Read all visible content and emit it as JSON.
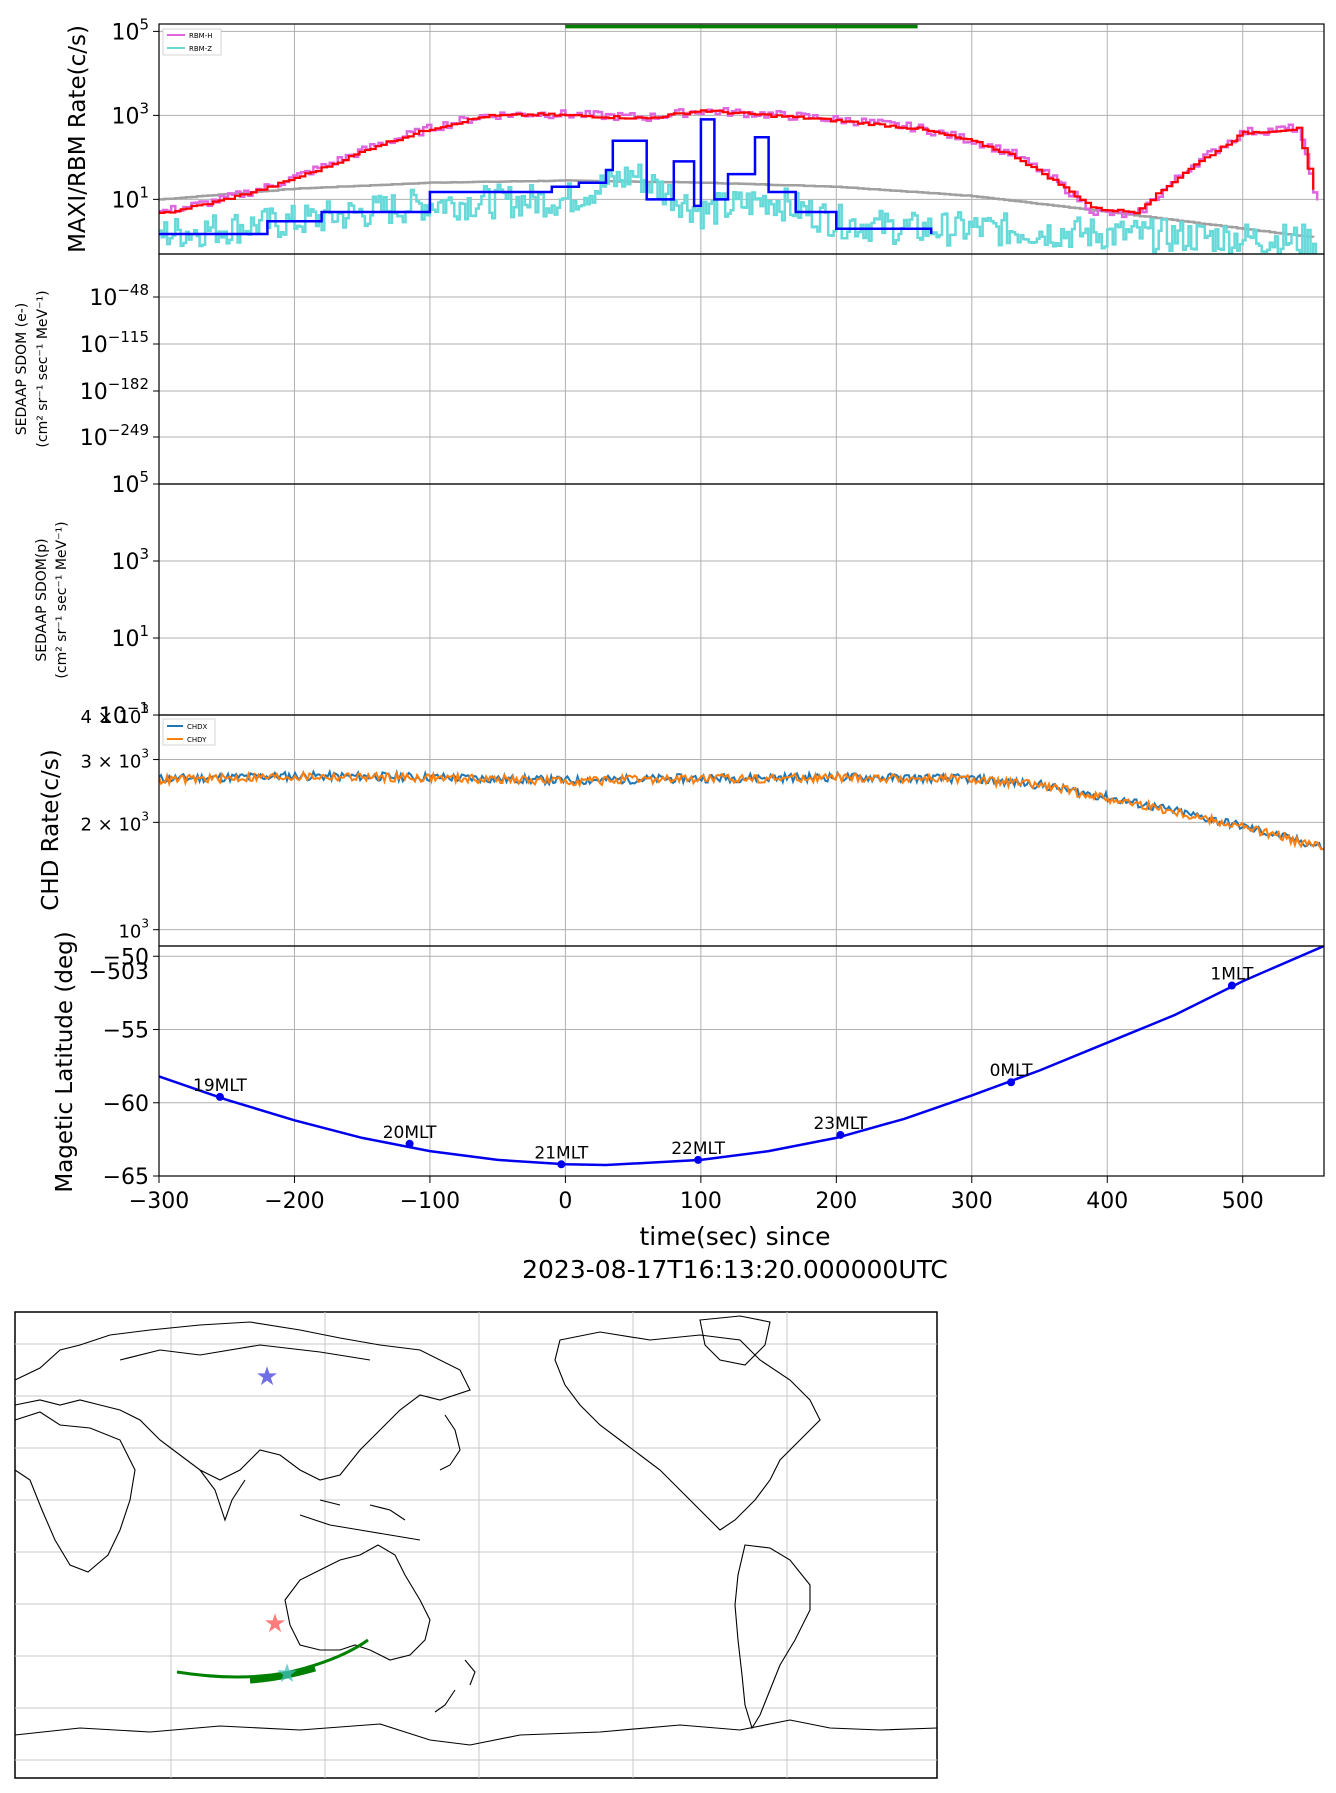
{
  "xaxis": {
    "label_line1": "time(sec) since",
    "label_line2": "2023-08-17T16:13:20.000000UTC",
    "range": [
      -300,
      560
    ],
    "ticks": [
      -300,
      -200,
      -100,
      0,
      100,
      200,
      300,
      400,
      500
    ],
    "tick_labels": [
      "−300",
      "−200",
      "−100",
      "0",
      "100",
      "200",
      "300",
      "400",
      "500"
    ]
  },
  "colors": {
    "rbm_h": "#e066e0",
    "rbm_z": "#66d9d9",
    "maxi_red": "#ff0000",
    "maxi_blue": "#0000ff",
    "background_curve": "#a0a0a0",
    "green_bar": "#008000",
    "chdx": "#1f77b4",
    "chdy": "#ff7f0e",
    "mlat": "#0000ee",
    "grid": "#b0b0b0"
  },
  "panel1": {
    "ylabel": "MAXI/RBM Rate(c/s)",
    "tick_labels": [
      "10",
      "10",
      "10"
    ],
    "tick_exps": [
      "5",
      "3",
      "1"
    ],
    "legend": [
      "RBM-H",
      "RBM-Z"
    ]
  },
  "panel2": {
    "ylabel_line1": "SEDAAP SDOM (e-)",
    "ylabel_line2": "(cm² sr⁻¹ sec⁻¹ MeV⁻¹)",
    "tick_labels": [
      "10",
      "10",
      "10",
      "10"
    ],
    "tick_exps": [
      "−48",
      "−115",
      "−182",
      "−249"
    ]
  },
  "panel3": {
    "ylabel_line1": "SEDAAP SDOM(p)",
    "ylabel_line2": "(cm² sr⁻¹ sec⁻¹ MeV⁻¹)",
    "tick_labels": [
      "10",
      "10",
      "10",
      "10"
    ],
    "tick_exps": [
      "5",
      "3",
      "1",
      "−1"
    ]
  },
  "panel4": {
    "ylabel": "CHD Rate(c/s)",
    "tick_labels": [
      "4 × 10",
      "3 × 10",
      "2 × 10",
      "10"
    ],
    "tick_exps": [
      "3",
      "3",
      "3",
      "3"
    ],
    "legend": [
      "CHDX",
      "CHDY"
    ]
  },
  "panel5": {
    "ylabel": "Magetic Latitude  (deg)",
    "tick_labels": [
      "−50",
      "−55",
      "−60",
      "−65"
    ],
    "overlap_label": "−503"
  },
  "chart_data": [
    {
      "type": "line",
      "title": "",
      "ylabel": "MAXI/RBM Rate(c/s)",
      "yscale": "log",
      "ylim": [
        0.5,
        150000
      ],
      "xlim": [
        -300,
        560
      ],
      "grid": true,
      "legend_placement": "top-left",
      "annotations": [
        {
          "type": "horizontal-bar",
          "x_range": [
            0,
            260
          ],
          "y": 130000,
          "color": "#008000"
        }
      ],
      "series": [
        {
          "name": "RBM-H",
          "x": [
            -300,
            -260,
            -220,
            -180,
            -140,
            -100,
            -60,
            -20,
            20,
            60,
            100,
            140,
            180,
            220,
            260,
            300,
            330,
            360,
            390,
            420,
            460,
            500,
            540,
            555
          ],
          "y": [
            5,
            9,
            20,
            60,
            200,
            500,
            1000,
            1100,
            1000,
            900,
            1300,
            1100,
            900,
            700,
            500,
            250,
            120,
            30,
            5,
            4,
            60,
            400,
            500,
            8
          ]
        },
        {
          "name": "RBM-Z",
          "x": [
            -300,
            -200,
            -100,
            0,
            50,
            100,
            150,
            200,
            250,
            300,
            400,
            500,
            555
          ],
          "y": [
            1.5,
            3,
            8,
            10,
            40,
            5,
            10,
            3,
            2,
            2,
            1.5,
            1.2,
            1
          ]
        },
        {
          "name": "",
          "x": [
            -300,
            -260,
            -220,
            -180,
            -140,
            -100,
            -60,
            -20,
            20,
            60,
            100,
            140,
            180,
            220,
            260,
            300,
            330,
            360,
            390,
            420,
            460,
            500,
            540,
            555
          ],
          "y": [
            4.5,
            8.5,
            19,
            55,
            190,
            480,
            950,
            1050,
            950,
            850,
            1300,
            1050,
            850,
            650,
            480,
            240,
            110,
            28,
            6,
            5,
            55,
            380,
            480,
            7
          ]
        },
        {
          "name": "",
          "x": [
            -300,
            -220,
            -180,
            -100,
            -60,
            -10,
            10,
            30,
            35,
            50,
            60,
            80,
            95,
            100,
            110,
            120,
            135,
            140,
            150,
            170,
            200,
            270
          ],
          "y": [
            1.5,
            3,
            5,
            15,
            15,
            20,
            25,
            50,
            250,
            250,
            10,
            80,
            7,
            800,
            10,
            40,
            40,
            300,
            15,
            5,
            2,
            1.5
          ]
        },
        {
          "name": "",
          "x": [
            -300,
            -200,
            -100,
            0,
            100,
            200,
            300,
            400,
            500,
            555
          ],
          "y": [
            10,
            18,
            25,
            28,
            25,
            20,
            12,
            5,
            2,
            1.2
          ]
        }
      ]
    },
    {
      "type": "line",
      "title": "",
      "ylabel": "SEDAAP SDOM (e-)",
      "yscale": "log",
      "ytick_values": [
        "1e-48",
        "1e-115",
        "1e-182",
        "1e-249"
      ],
      "xlim": [
        -300,
        560
      ],
      "grid": true,
      "series": []
    },
    {
      "type": "line",
      "title": "",
      "ylabel": "SEDAAP SDOM(p)",
      "yscale": "log",
      "ylim": [
        0.1,
        100000
      ],
      "xlim": [
        -300,
        560
      ],
      "grid": true,
      "series": []
    },
    {
      "type": "line",
      "title": "",
      "ylabel": "CHD Rate(c/s)",
      "yscale": "log",
      "ylim": [
        900,
        4000
      ],
      "xlim": [
        -300,
        560
      ],
      "grid": true,
      "legend_placement": "top-left",
      "series": [
        {
          "name": "CHDX",
          "x": [
            -300,
            -200,
            -100,
            0,
            100,
            200,
            300,
            350,
            400,
            450,
            500,
            560
          ],
          "y": [
            2650,
            2700,
            2680,
            2620,
            2660,
            2680,
            2650,
            2550,
            2350,
            2150,
            1950,
            1700
          ]
        },
        {
          "name": "CHDY",
          "x": [
            -300,
            -200,
            -100,
            0,
            100,
            200,
            300,
            350,
            400,
            450,
            500,
            560
          ],
          "y": [
            2630,
            2690,
            2670,
            2610,
            2650,
            2670,
            2640,
            2540,
            2340,
            2140,
            1940,
            1690
          ]
        }
      ]
    },
    {
      "type": "line",
      "title": "",
      "ylabel": "Magetic Latitude  (deg)",
      "ylim": [
        -65,
        -49.3
      ],
      "xlim": [
        -300,
        560
      ],
      "grid": true,
      "series": [
        {
          "name": "",
          "x": [
            -300,
            -250,
            -200,
            -150,
            -100,
            -50,
            0,
            30,
            100,
            150,
            200,
            250,
            300,
            350,
            400,
            450,
            500,
            560
          ],
          "y": [
            -58.2,
            -59.8,
            -61.2,
            -62.4,
            -63.3,
            -63.9,
            -64.2,
            -64.25,
            -63.9,
            -63.3,
            -62.4,
            -61.1,
            -59.5,
            -57.8,
            -55.9,
            -54,
            -51.7,
            -49.3
          ]
        }
      ],
      "markers": [
        {
          "label": "19MLT",
          "x": -255,
          "y": -59.6
        },
        {
          "label": "20MLT",
          "x": -115,
          "y": -62.8
        },
        {
          "label": "21MLT",
          "x": -3,
          "y": -64.2
        },
        {
          "label": "22MLT",
          "x": 98,
          "y": -63.9
        },
        {
          "label": "23MLT",
          "x": 203,
          "y": -62.2
        },
        {
          "label": "0MLT",
          "x": 329,
          "y": -58.6
        },
        {
          "label": "1MLT",
          "x": 492,
          "y": -52
        }
      ]
    },
    {
      "type": "map",
      "title": "",
      "stars": [
        {
          "color": "#4040dd",
          "where": "northern Siberia"
        },
        {
          "color": "#ff5050",
          "where": "Indian Ocean west of Australia"
        },
        {
          "color": "#40c0c0",
          "where": "southern Indian Ocean on the track"
        }
      ],
      "track_color": "#008000",
      "track_lon_lat": [
        [
          50,
          -53
        ],
        [
          70,
          -56
        ],
        [
          90,
          -57
        ],
        [
          110,
          -55
        ],
        [
          125,
          -52
        ],
        [
          140,
          -48
        ],
        [
          150,
          -44
        ]
      ]
    }
  ]
}
